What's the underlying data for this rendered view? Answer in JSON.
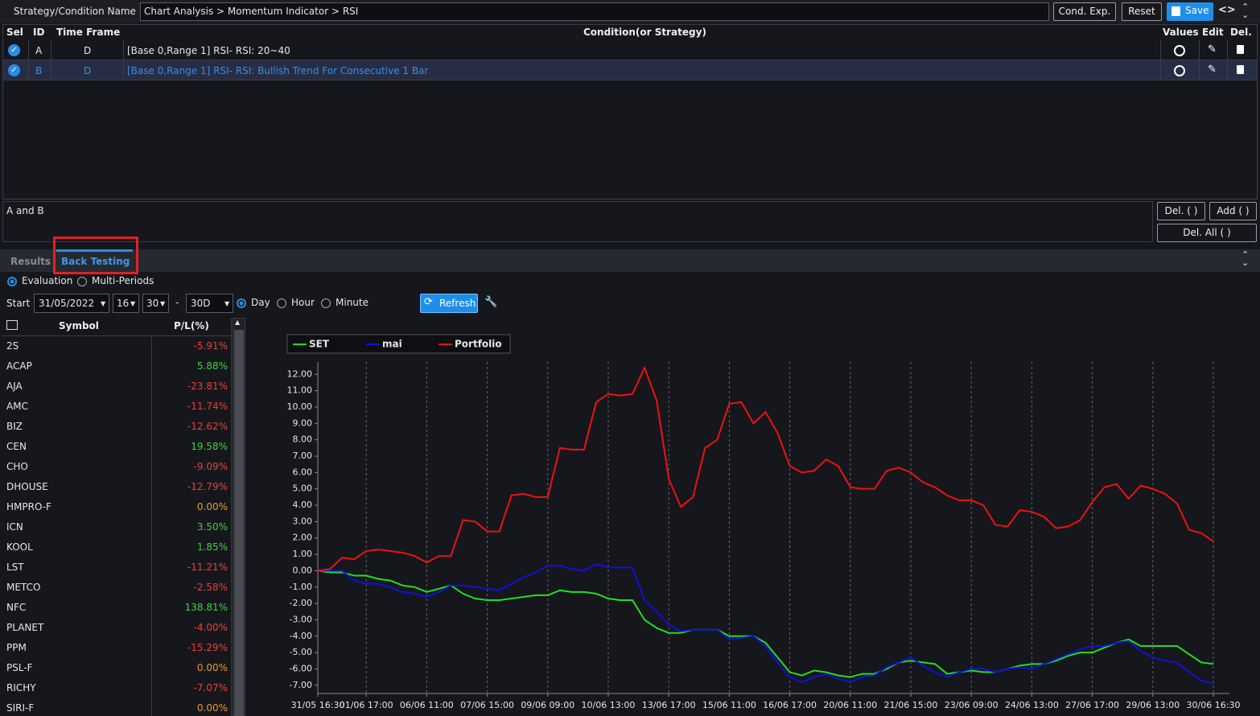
{
  "header": {
    "label": "Strategy/Condition Name",
    "name": "Chart Analysis > Momentum Indicator > RSI",
    "buttons": [
      "Cond. Exp.",
      "Reset",
      "Save"
    ]
  },
  "conditions": {
    "columns": [
      "Sel",
      "ID",
      "Time Frame",
      "Condition(or Strategy)",
      "Values",
      "Edit",
      "Del."
    ],
    "rows": [
      {
        "id": "A",
        "time_frame": "D",
        "condition": "[Base 0,Range 1] RSI- RSI: 20~40"
      },
      {
        "id": "B",
        "time_frame": "D",
        "condition": "[Base 0,Range 1] RSI- RSI: Bullish Trend For Consecutive 1 Bar"
      }
    ]
  },
  "expression": {
    "text": "A and B",
    "buttons": [
      "Del. ( )",
      "Add ( )",
      "Del. All ( )"
    ]
  },
  "tabs": [
    "Results",
    "Back Testing"
  ],
  "modes": [
    "Evaluation",
    "Multi-Periods"
  ],
  "controls": {
    "start": "Start",
    "date": "31/05/2022",
    "hour": "16",
    "minute": "30",
    "separator": "-",
    "period": "30D",
    "units": [
      "Day",
      "Hour",
      "Minute"
    ],
    "refresh": "Refresh"
  },
  "results": {
    "columns": [
      "Symbol",
      "P/L(%)"
    ],
    "rows": [
      [
        "2S",
        "-5.91%"
      ],
      [
        "ACAP",
        "5.88%"
      ],
      [
        "AJA",
        "-23.81%"
      ],
      [
        "AMC",
        "-11.74%"
      ],
      [
        "BIZ",
        "-12.62%"
      ],
      [
        "CEN",
        "19.58%"
      ],
      [
        "CHO",
        "-9.09%"
      ],
      [
        "DHOUSE",
        "-12.79%"
      ],
      [
        "HMPRO-F",
        "0.00%"
      ],
      [
        "ICN",
        "3.50%"
      ],
      [
        "KOOL",
        "1.85%"
      ],
      [
        "LST",
        "-11.21%"
      ],
      [
        "METCO",
        "-2.58%"
      ],
      [
        "NFC",
        "138.81%"
      ],
      [
        "PLANET",
        "-4.00%"
      ],
      [
        "PPM",
        "-15.29%"
      ],
      [
        "PSL-F",
        "0.00%"
      ],
      [
        "RICHY",
        "-7.07%"
      ],
      [
        "SIRI-F",
        "0.00%"
      ]
    ]
  },
  "chart_data": {
    "type": "line",
    "legend": "top-left",
    "grid": true,
    "categories": [
      "31/05 16:30",
      null,
      null,
      null,
      "01/06 17:00",
      null,
      null,
      null,
      null,
      "06/06 11:00",
      null,
      null,
      null,
      null,
      "07/06 15:00",
      null,
      null,
      null,
      null,
      "09/06 09:00",
      null,
      null,
      null,
      null,
      "10/06 13:00",
      null,
      null,
      null,
      null,
      "13/06 17:00",
      null,
      null,
      null,
      null,
      "15/06 11:00",
      null,
      null,
      null,
      null,
      "16/06 17:00",
      null,
      null,
      null,
      null,
      "20/06 11:00",
      null,
      null,
      null,
      null,
      "21/06 15:00",
      null,
      null,
      null,
      null,
      "23/06 09:00",
      null,
      null,
      null,
      null,
      "24/06 13:00",
      null,
      null,
      null,
      null,
      "27/06 17:00",
      null,
      null,
      null,
      null,
      "29/06 13:00",
      null,
      null,
      null,
      null,
      "30/06 16:30"
    ],
    "series": [
      {
        "name": "SET",
        "color": "#22dd22",
        "values": [
          0,
          -0.1,
          -0.1,
          -0.3,
          -0.3,
          -0.5,
          -0.6,
          -0.9,
          -1.0,
          -1.3,
          -1.1,
          -0.9,
          -1.4,
          -1.7,
          -1.8,
          -1.8,
          -1.7,
          -1.6,
          -1.5,
          -1.5,
          -1.2,
          -1.3,
          -1.3,
          -1.4,
          -1.7,
          -1.8,
          -1.8,
          -3.0,
          -3.5,
          -3.8,
          -3.8,
          -3.6,
          -3.6,
          -3.6,
          -4.0,
          -4.0,
          -4.0,
          -4.4,
          -5.3,
          -6.2,
          -6.4,
          -6.1,
          -6.2,
          -6.4,
          -6.5,
          -6.3,
          -6.3,
          -6.0,
          -5.6,
          -5.5,
          -5.6,
          -5.7,
          -6.3,
          -6.2,
          -6.1,
          -6.2,
          -6.2,
          -6.0,
          -5.8,
          -5.7,
          -5.7,
          -5.5,
          -5.2,
          -5.0,
          -5.0,
          -4.7,
          -4.4,
          -4.2,
          -4.6,
          -4.6,
          -4.6,
          -4.6,
          -5.1,
          -5.6,
          -5.7
        ]
      },
      {
        "name": "mai",
        "color": "#1010dd",
        "values": [
          0,
          0,
          0,
          -0.6,
          -0.8,
          -0.8,
          -1.0,
          -1.3,
          -1.4,
          -1.6,
          -1.3,
          -0.9,
          -0.9,
          -1.0,
          -1.1,
          -1.2,
          -0.8,
          -0.4,
          -0.1,
          0.3,
          0.3,
          0.1,
          0.0,
          0.4,
          0.2,
          0.2,
          0.2,
          -1.8,
          -2.5,
          -3.3,
          -3.7,
          -3.6,
          -3.6,
          -3.6,
          -4.2,
          -4.1,
          -4.0,
          -4.6,
          -5.6,
          -6.5,
          -6.8,
          -6.5,
          -6.3,
          -6.6,
          -6.8,
          -6.5,
          -6.4,
          -5.9,
          -5.6,
          -5.3,
          -5.8,
          -6.2,
          -6.5,
          -6.2,
          -6.0,
          -6.0,
          -6.2,
          -6.0,
          -5.9,
          -6.0,
          -5.7,
          -5.4,
          -5.1,
          -4.8,
          -4.6,
          -4.6,
          -4.4,
          -4.3,
          -4.9,
          -5.3,
          -5.5,
          -5.6,
          -6.2,
          -6.7,
          -6.9
        ]
      },
      {
        "name": "Portfolio",
        "color": "#ee1111",
        "values": [
          0,
          0.1,
          0.8,
          0.7,
          1.2,
          1.3,
          1.2,
          1.1,
          0.9,
          0.5,
          0.9,
          0.9,
          3.1,
          3.0,
          2.4,
          2.4,
          4.6,
          4.7,
          4.5,
          4.5,
          7.5,
          7.4,
          7.4,
          10.3,
          10.8,
          10.7,
          10.8,
          12.4,
          10.4,
          5.6,
          3.9,
          4.5,
          7.5,
          8.0,
          10.2,
          10.3,
          9.0,
          9.7,
          8.4,
          6.4,
          6.0,
          6.1,
          6.8,
          6.4,
          5.1,
          5.0,
          5.0,
          6.1,
          6.3,
          6.0,
          5.4,
          5.1,
          4.6,
          4.3,
          4.3,
          4.0,
          2.8,
          2.7,
          3.7,
          3.6,
          3.3,
          2.6,
          2.7,
          3.1,
          4.2,
          5.1,
          5.3,
          4.4,
          5.2,
          5.0,
          4.7,
          4.1,
          2.5,
          2.3,
          1.8
        ]
      }
    ],
    "ylim": [
      -7.5,
      12.75
    ],
    "yticks": [
      {
        "value": -7,
        "label": "-7.00"
      },
      {
        "value": -6,
        "label": "-6.00"
      },
      {
        "value": -5,
        "label": "-5.00"
      },
      {
        "value": -4,
        "label": "-4.00"
      },
      {
        "value": -3,
        "label": "-3.00"
      },
      {
        "value": -2,
        "label": "-2.00"
      },
      {
        "value": -1,
        "label": "-1.00"
      },
      {
        "value": 0,
        "label": "0.00"
      },
      {
        "value": 1,
        "label": "1.00"
      },
      {
        "value": 2,
        "label": "2.00"
      },
      {
        "value": 3,
        "label": "3.00"
      },
      {
        "value": 4,
        "label": "4.00"
      },
      {
        "value": 5,
        "label": "5.00"
      },
      {
        "value": 6,
        "label": "6.00"
      },
      {
        "value": 7,
        "label": "7.00"
      },
      {
        "value": 8,
        "label": "8.00"
      },
      {
        "value": 9,
        "label": "9.00"
      },
      {
        "value": 10,
        "label": "10.00"
      },
      {
        "value": 11,
        "label": "11.00"
      },
      {
        "value": 12,
        "label": "12.00"
      }
    ]
  }
}
